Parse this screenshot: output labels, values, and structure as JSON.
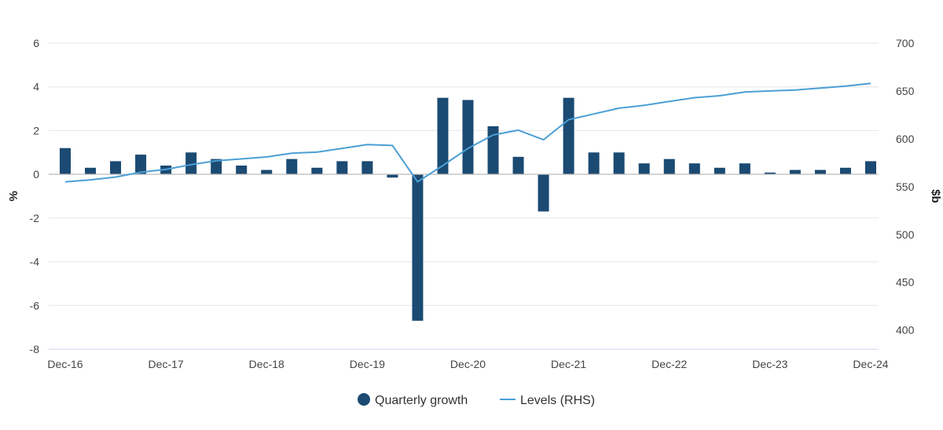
{
  "chart_data": {
    "type": "bar",
    "title": "",
    "xlabel": "",
    "ylabel": "%",
    "y2label": "$b",
    "x_tick_labels": [
      "Dec-16",
      "Dec-17",
      "Dec-18",
      "Dec-19",
      "Dec-20",
      "Dec-21",
      "Dec-22",
      "Dec-23",
      "Dec-24"
    ],
    "ylim": [
      -8,
      6
    ],
    "y_ticks": [
      6,
      4,
      2,
      0,
      -2,
      -4,
      -6,
      -8
    ],
    "y2lim": [
      380,
      700
    ],
    "y2_ticks": [
      700,
      650,
      600,
      550,
      500,
      450,
      400
    ],
    "grid": true,
    "legend_position": "bottom-center",
    "series": [
      {
        "name": "Quarterly growth",
        "type": "bar",
        "axis": "left",
        "color": "#1b4a72",
        "values": [
          1.2,
          0.3,
          0.6,
          0.9,
          0.4,
          1.0,
          0.7,
          0.4,
          0.2,
          0.7,
          0.3,
          0.6,
          0.6,
          -0.15,
          -6.7,
          3.5,
          3.4,
          2.2,
          0.8,
          -1.7,
          3.5,
          1.0,
          1.0,
          0.5,
          0.7,
          0.5,
          0.3,
          0.5,
          0.08,
          0.2,
          0.2,
          0.3,
          0.6
        ]
      },
      {
        "name": "Levels (RHS)",
        "type": "line",
        "axis": "right",
        "color": "#4a9fd6",
        "values": [
          555,
          557,
          560,
          565,
          568,
          573,
          577,
          579,
          581,
          585,
          586,
          590,
          594,
          593,
          555,
          572,
          590,
          604,
          609,
          599,
          620,
          626,
          632,
          635,
          639,
          643,
          645,
          649,
          650,
          651,
          653,
          655,
          658
        ]
      }
    ]
  },
  "colors": {
    "bar": "#1b4a72",
    "line": "#4a9fd6",
    "grid": "#e3e6ee",
    "zero_line": "#bbbbbb"
  }
}
